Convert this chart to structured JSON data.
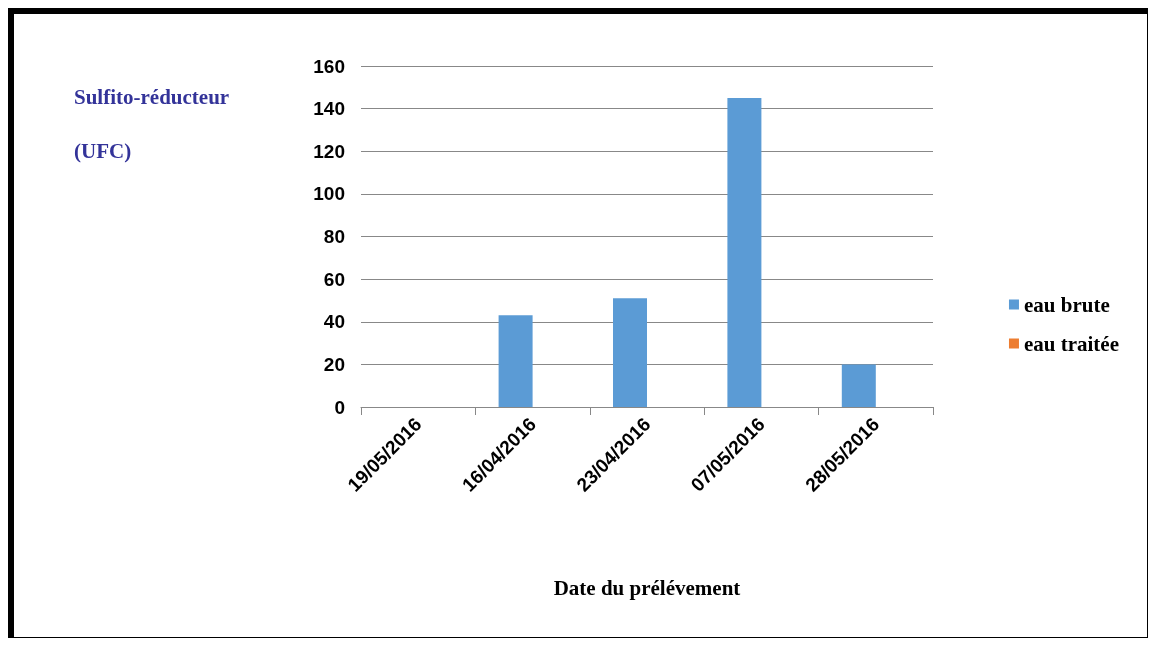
{
  "chart_data": {
    "type": "bar",
    "ylabel": "Sulfito-réducteur (UFC)",
    "xlabel": "Date du prélévement",
    "categories": [
      "19/05/2016",
      "16/04/2016",
      "23/04/2016",
      "07/05/2016",
      "28/05/2016"
    ],
    "series": [
      {
        "name": "eau brute",
        "color": "#5b9bd5",
        "values": [
          0,
          43,
          51,
          145,
          20
        ]
      },
      {
        "name": "eau traitée",
        "color": "#ed7d31",
        "values": [
          0,
          0,
          0,
          0,
          0
        ]
      }
    ],
    "ylim": [
      0,
      160
    ],
    "yticks": [
      0,
      20,
      40,
      60,
      80,
      100,
      120,
      140,
      160
    ],
    "grid": "y",
    "legend": "right"
  }
}
